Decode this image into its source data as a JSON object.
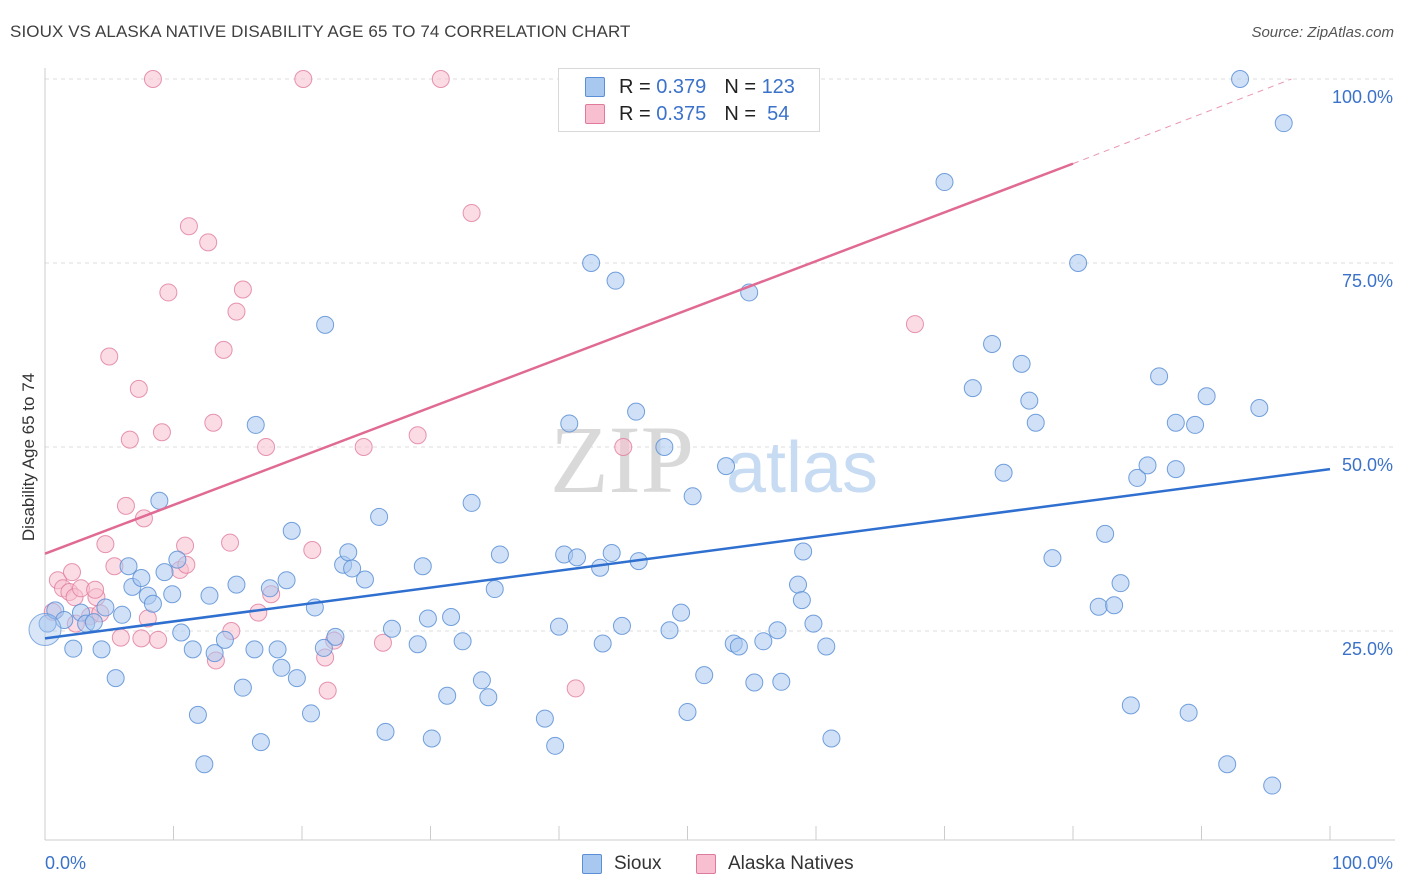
{
  "header": {
    "title": "SIOUX VS ALASKA NATIVE DISABILITY AGE 65 TO 74 CORRELATION CHART",
    "source": "Source: ZipAtlas.com"
  },
  "watermark": {
    "zip": "ZIP",
    "atlas": "atlas"
  },
  "stats_legend": {
    "rows": [
      {
        "r_label": "R = ",
        "r_value": "0.379",
        "n_label": "N = ",
        "n_value": "123",
        "color": "#a9c8f0",
        "border": "#5b8fd6"
      },
      {
        "r_label": "R = ",
        "r_value": "0.375",
        "n_label": "N = ",
        "n_value": " 54",
        "color": "#f7bfd0",
        "border": "#e07a9c"
      }
    ]
  },
  "bottom_legend": {
    "items": [
      {
        "label": "Sioux",
        "color": "#a9c8f0",
        "border": "#5b8fd6"
      },
      {
        "label": "Alaska Natives",
        "color": "#f7bfd0",
        "border": "#e07a9c"
      }
    ]
  },
  "chart_data": {
    "type": "scatter",
    "title": "SIOUX VS ALASKA NATIVE DISABILITY AGE 65 TO 74 CORRELATION CHART",
    "xlabel": "",
    "ylabel": "Disability Age 65 to 74",
    "xlim": [
      0,
      100
    ],
    "ylim": [
      0,
      100
    ],
    "x_tick_labels": [
      "0.0%",
      "100.0%"
    ],
    "y_tick_labels": [
      "25.0%",
      "50.0%",
      "75.0%",
      "100.0%"
    ],
    "y_ticks": [
      25,
      50,
      75,
      100
    ],
    "grid": true,
    "colors": {
      "sioux_point": "#a9c8f0",
      "sioux_stroke": "#5b8fd6",
      "sioux_line": "#2f6fcf",
      "alaska_point": "#f7bfd0",
      "alaska_stroke": "#e07a9c",
      "alaska_line": "#e06a93",
      "axis_text": "#3b72c9"
    },
    "series": [
      {
        "name": "Sioux",
        "trend": {
          "x": [
            0,
            100
          ],
          "y": [
            24.0,
            47.0
          ]
        },
        "points": [
          [
            0.2,
            26.0
          ],
          [
            0.8,
            27.8
          ],
          [
            1.5,
            26.5
          ],
          [
            2.2,
            22.6
          ],
          [
            2.8,
            27.5
          ],
          [
            3.2,
            26.0
          ],
          [
            3.8,
            26.2
          ],
          [
            4.4,
            22.5
          ],
          [
            4.7,
            28.2
          ],
          [
            5.5,
            18.6
          ],
          [
            6.0,
            27.2
          ],
          [
            6.5,
            33.8
          ],
          [
            6.8,
            31.0
          ],
          [
            7.5,
            32.2
          ],
          [
            8.0,
            29.8
          ],
          [
            8.4,
            28.7
          ],
          [
            8.9,
            42.7
          ],
          [
            9.3,
            33.0
          ],
          [
            9.9,
            30.0
          ],
          [
            10.3,
            34.7
          ],
          [
            10.6,
            24.8
          ],
          [
            11.5,
            22.5
          ],
          [
            11.9,
            13.6
          ],
          [
            12.4,
            6.9
          ],
          [
            12.8,
            29.8
          ],
          [
            13.2,
            22.0
          ],
          [
            14.0,
            23.8
          ],
          [
            14.9,
            31.3
          ],
          [
            15.4,
            17.3
          ],
          [
            16.3,
            22.5
          ],
          [
            16.4,
            53.0
          ],
          [
            16.8,
            9.9
          ],
          [
            17.5,
            30.8
          ],
          [
            18.1,
            22.5
          ],
          [
            18.4,
            20.0
          ],
          [
            18.8,
            31.9
          ],
          [
            19.2,
            38.6
          ],
          [
            19.6,
            18.6
          ],
          [
            20.7,
            13.8
          ],
          [
            21.0,
            28.2
          ],
          [
            21.7,
            22.7
          ],
          [
            21.8,
            66.6
          ],
          [
            22.6,
            24.2
          ],
          [
            23.2,
            34.0
          ],
          [
            23.6,
            35.7
          ],
          [
            23.9,
            33.5
          ],
          [
            24.9,
            32.0
          ],
          [
            26.0,
            40.5
          ],
          [
            26.5,
            11.3
          ],
          [
            27.0,
            25.3
          ],
          [
            29.0,
            23.2
          ],
          [
            29.4,
            33.8
          ],
          [
            29.8,
            26.7
          ],
          [
            30.1,
            10.4
          ],
          [
            31.3,
            16.2
          ],
          [
            31.6,
            26.9
          ],
          [
            32.5,
            23.6
          ],
          [
            33.2,
            42.4
          ],
          [
            34.0,
            18.3
          ],
          [
            34.5,
            16.0
          ],
          [
            35.0,
            30.7
          ],
          [
            35.4,
            35.4
          ],
          [
            38.9,
            13.1
          ],
          [
            39.7,
            9.4
          ],
          [
            40.0,
            25.6
          ],
          [
            40.4,
            35.4
          ],
          [
            40.8,
            53.2
          ],
          [
            41.4,
            35.0
          ],
          [
            42.5,
            75.0
          ],
          [
            43.2,
            33.6
          ],
          [
            43.4,
            23.3
          ],
          [
            44.1,
            35.6
          ],
          [
            44.4,
            72.6
          ],
          [
            44.9,
            25.7
          ],
          [
            46.0,
            54.8
          ],
          [
            46.2,
            34.5
          ],
          [
            48.2,
            50.0
          ],
          [
            48.6,
            25.1
          ],
          [
            49.5,
            27.5
          ],
          [
            50.0,
            14.0
          ],
          [
            50.4,
            43.3
          ],
          [
            51.3,
            19.0
          ],
          [
            53.6,
            23.3
          ],
          [
            54.0,
            22.9
          ],
          [
            54.8,
            71.0
          ],
          [
            55.2,
            18.0
          ],
          [
            55.9,
            23.6
          ],
          [
            57.0,
            25.1
          ],
          [
            57.3,
            18.1
          ],
          [
            58.6,
            31.3
          ],
          [
            58.9,
            29.2
          ],
          [
            59.0,
            35.8
          ],
          [
            59.8,
            26.0
          ],
          [
            60.8,
            22.9
          ],
          [
            61.2,
            10.4
          ],
          [
            70.0,
            86.0
          ],
          [
            73.7,
            64.0
          ],
          [
            72.2,
            58.0
          ],
          [
            74.6,
            46.5
          ],
          [
            76.0,
            61.3
          ],
          [
            76.6,
            56.3
          ],
          [
            77.1,
            53.3
          ],
          [
            78.4,
            34.9
          ],
          [
            80.4,
            75.0
          ],
          [
            82.0,
            28.3
          ],
          [
            82.5,
            38.2
          ],
          [
            83.2,
            28.5
          ],
          [
            83.7,
            31.5
          ],
          [
            84.5,
            14.9
          ],
          [
            85.0,
            45.8
          ],
          [
            85.8,
            47.5
          ],
          [
            86.7,
            59.6
          ],
          [
            88.0,
            53.3
          ],
          [
            89.0,
            13.9
          ],
          [
            89.5,
            53.0
          ],
          [
            90.4,
            56.9
          ],
          [
            92.0,
            6.9
          ],
          [
            93.0,
            100.0
          ],
          [
            94.5,
            55.3
          ],
          [
            95.5,
            4.0
          ],
          [
            96.4,
            94.0
          ],
          [
            88.0,
            47.0
          ],
          [
            53.0,
            47.4
          ]
        ]
      },
      {
        "name": "Alaska Natives",
        "trend": {
          "x": [
            0,
            80
          ],
          "y": [
            35.5,
            88.5
          ]
        },
        "trend_dashed": {
          "x": [
            80,
            97
          ],
          "y": [
            88.5,
            100.0
          ]
        },
        "points": [
          [
            0.6,
            27.6
          ],
          [
            1.0,
            31.9
          ],
          [
            1.4,
            30.8
          ],
          [
            1.9,
            30.3
          ],
          [
            2.1,
            33.0
          ],
          [
            2.3,
            29.6
          ],
          [
            2.8,
            30.8
          ],
          [
            3.5,
            27.0
          ],
          [
            4.0,
            29.6
          ],
          [
            4.3,
            27.4
          ],
          [
            4.7,
            36.8
          ],
          [
            5.0,
            62.3
          ],
          [
            5.4,
            33.8
          ],
          [
            5.9,
            24.1
          ],
          [
            6.3,
            42.0
          ],
          [
            6.6,
            51.0
          ],
          [
            7.3,
            57.9
          ],
          [
            7.7,
            40.3
          ],
          [
            8.0,
            26.7
          ],
          [
            8.4,
            100.0
          ],
          [
            8.8,
            23.8
          ],
          [
            9.1,
            52.0
          ],
          [
            9.6,
            71.0
          ],
          [
            10.5,
            33.3
          ],
          [
            10.9,
            36.6
          ],
          [
            11.2,
            80.0
          ],
          [
            12.7,
            77.8
          ],
          [
            13.1,
            53.3
          ],
          [
            13.3,
            21.0
          ],
          [
            13.9,
            63.2
          ],
          [
            14.4,
            37.0
          ],
          [
            14.5,
            25.0
          ],
          [
            14.9,
            68.4
          ],
          [
            15.4,
            71.4
          ],
          [
            16.6,
            27.5
          ],
          [
            17.2,
            50.0
          ],
          [
            17.6,
            30.0
          ],
          [
            20.1,
            100.0
          ],
          [
            20.8,
            36.0
          ],
          [
            21.8,
            21.4
          ],
          [
            22.0,
            16.9
          ],
          [
            22.5,
            23.7
          ],
          [
            24.8,
            50.0
          ],
          [
            26.3,
            23.4
          ],
          [
            29.0,
            51.6
          ],
          [
            30.8,
            100.0
          ],
          [
            33.2,
            81.8
          ],
          [
            41.3,
            17.2
          ],
          [
            45.0,
            50.0
          ],
          [
            67.7,
            66.7
          ],
          [
            7.5,
            24.0
          ],
          [
            11.0,
            34.0
          ],
          [
            3.9,
            30.6
          ],
          [
            2.4,
            26.0
          ]
        ]
      }
    ]
  }
}
